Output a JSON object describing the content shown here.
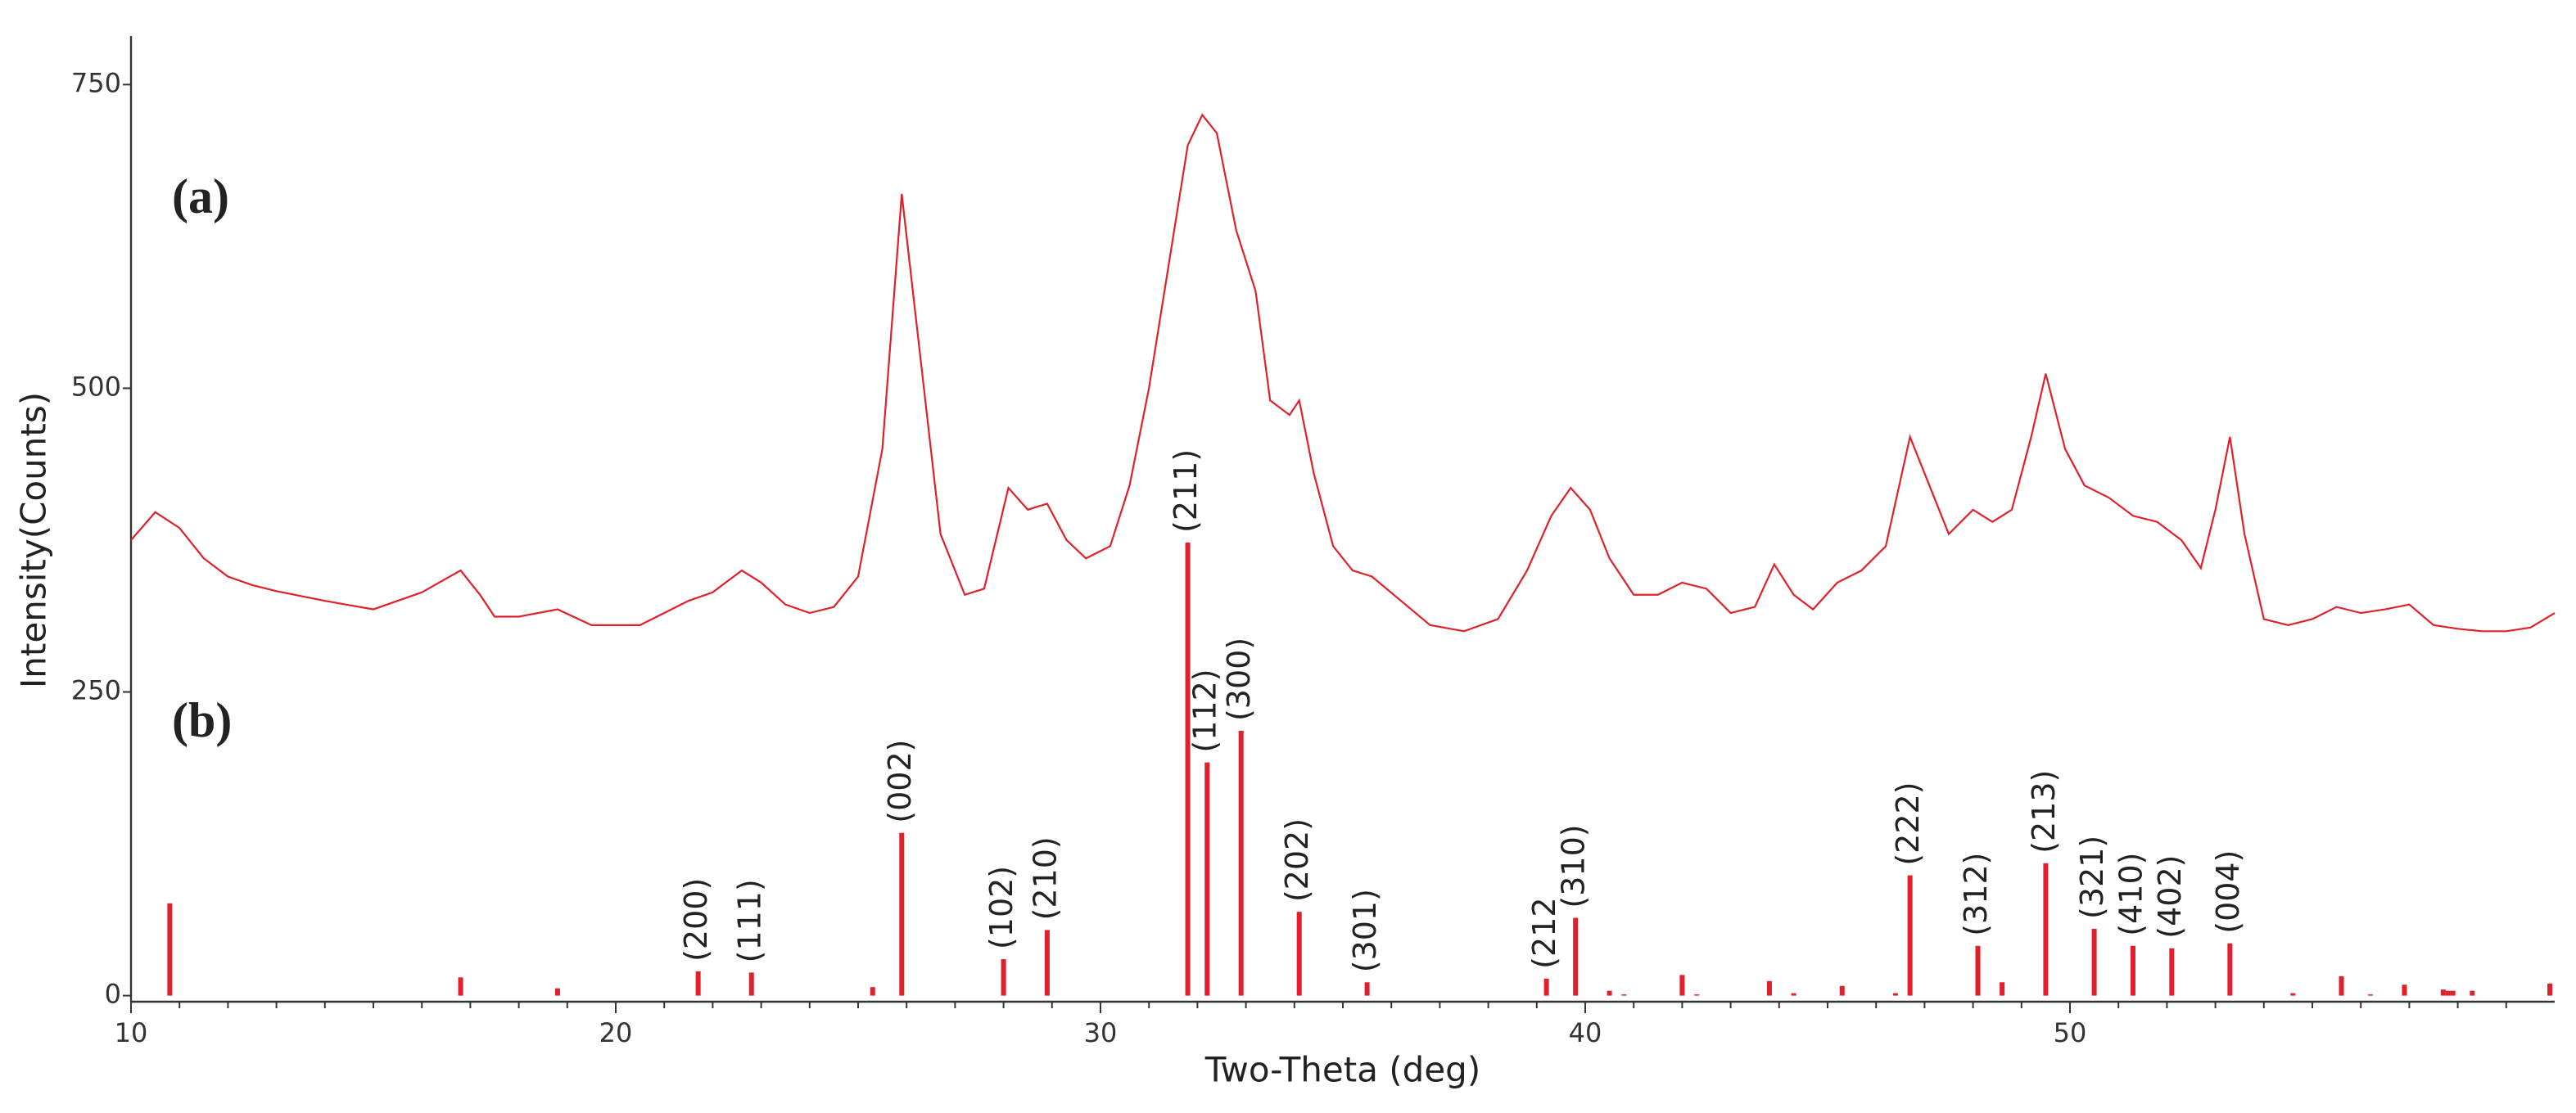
{
  "chart_data": {
    "type": "line",
    "x_label": "Two-Theta (deg)",
    "y_label": "Intensity(Counts)",
    "annotations": [
      "(a)",
      "(b)"
    ],
    "xlim": [
      10,
      60
    ],
    "ylim": [
      -5,
      790
    ],
    "xticks": [
      10,
      20,
      30,
      40,
      50
    ],
    "xminorticks": [
      11,
      12,
      13,
      14,
      15,
      16,
      17,
      18,
      19,
      21,
      22,
      23,
      24,
      25,
      26,
      27,
      28,
      29,
      31,
      32,
      33,
      34,
      35,
      36,
      37,
      38,
      39,
      41,
      42,
      43,
      44,
      45,
      46,
      47,
      48,
      49,
      51,
      52,
      53,
      54,
      55,
      56,
      57,
      58,
      59
    ],
    "yticks": [
      0,
      250,
      500,
      750
    ],
    "pattern": {
      "color": "#e0202a",
      "x": [
        10.0,
        10.5,
        11.0,
        11.5,
        12,
        12.5,
        13,
        14,
        15,
        16,
        16.8,
        17.2,
        17.5,
        18,
        18.8,
        19.5,
        20.5,
        21.5,
        22,
        22.6,
        23,
        23.5,
        24,
        24.5,
        25,
        25.5,
        25.9,
        26.3,
        26.7,
        27.2,
        27.6,
        28.1,
        28.5,
        28.9,
        29.3,
        29.7,
        30.2,
        30.6,
        31,
        31.4,
        31.8,
        32.1,
        32.4,
        32.8,
        33.2,
        33.5,
        33.9,
        34.1,
        34.4,
        34.8,
        35.2,
        35.6,
        36.2,
        36.8,
        37.5,
        38.2,
        38.8,
        39.3,
        39.7,
        40.1,
        40.5,
        41,
        41.5,
        42,
        42.5,
        43,
        43.5,
        43.9,
        44.3,
        44.7,
        45.2,
        45.7,
        46.2,
        46.7,
        47.1,
        47.5,
        48,
        48.4,
        48.8,
        49.2,
        49.5,
        49.9,
        50.3,
        50.8,
        51.3,
        51.8,
        52.3,
        52.7,
        53.0,
        53.3,
        53.6,
        54,
        54.5,
        55,
        55.5,
        56,
        56.5,
        57,
        57.5,
        58,
        58.5,
        59,
        59.5,
        60
      ],
      "values": [
        375,
        398,
        385,
        360,
        345,
        338,
        333,
        325,
        318,
        332,
        350,
        330,
        312,
        312,
        318,
        305,
        305,
        325,
        332,
        350,
        340,
        322,
        315,
        320,
        345,
        450,
        660,
        520,
        380,
        330,
        335,
        418,
        400,
        405,
        375,
        360,
        370,
        420,
        500,
        600,
        700,
        725,
        710,
        630,
        580,
        490,
        478,
        490,
        430,
        370,
        350,
        345,
        325,
        305,
        300,
        310,
        350,
        395,
        418,
        400,
        360,
        330,
        330,
        340,
        335,
        315,
        320,
        355,
        330,
        318,
        340,
        350,
        370,
        460,
        420,
        380,
        400,
        390,
        400,
        460,
        512,
        450,
        420,
        410,
        395,
        390,
        375,
        352,
        400,
        460,
        380,
        310,
        305,
        310,
        320,
        315,
        318,
        322,
        305,
        302,
        300,
        300,
        303,
        315
      ]
    },
    "sticks": {
      "color": "#e0202a",
      "x": [
        10.8,
        16.8,
        18.8,
        21.7,
        22.8,
        25.3,
        25.9,
        28.0,
        28.9,
        31.8,
        32.2,
        32.9,
        34.1,
        35.5,
        39.2,
        39.8,
        40.5,
        40.8,
        42.0,
        42.3,
        43.8,
        44.3,
        45.3,
        46.4,
        46.7,
        48.1,
        48.6,
        49.5,
        50.5,
        51.3,
        52.1,
        53.3,
        54.6,
        55.6,
        56.2,
        56.9,
        57.7,
        57.8,
        57.9,
        58.3,
        59.9
      ],
      "values": [
        76,
        15,
        6,
        20,
        19,
        7,
        134,
        30,
        54,
        373,
        192,
        218,
        69,
        11,
        14,
        64,
        4,
        1,
        17,
        1,
        12,
        2,
        8,
        2,
        99,
        41,
        11,
        109,
        55,
        41,
        39,
        43,
        2,
        16,
        1,
        9,
        5,
        4,
        4,
        4,
        10
      ],
      "labels": [
        null,
        null,
        null,
        "(200)",
        "(111)",
        null,
        "(002)",
        "(102)",
        "(210)",
        "(211)",
        "(112)",
        "(300)",
        "(202)",
        "(301)",
        "(212",
        "(310)",
        null,
        null,
        null,
        null,
        null,
        null,
        null,
        null,
        "(222)",
        "(312)",
        null,
        "(213)",
        "(321)",
        "(410)",
        "(402)",
        "(004)",
        null,
        null,
        null,
        null,
        null,
        null,
        null,
        null,
        null
      ]
    }
  }
}
